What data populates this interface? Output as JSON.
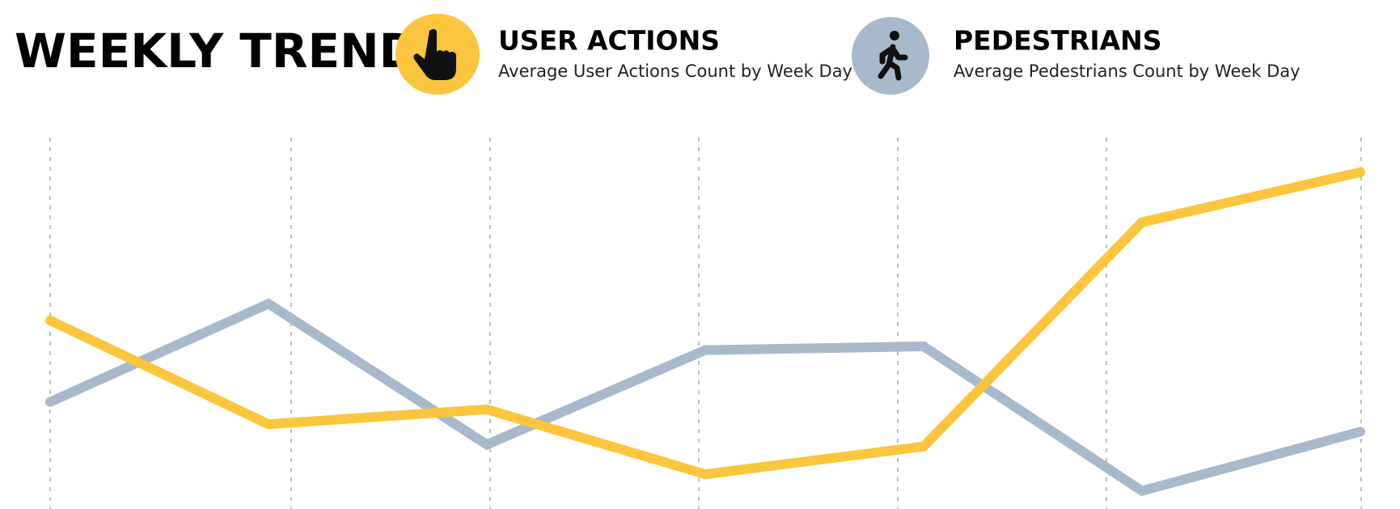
{
  "chart_data": {
    "type": "line",
    "title": "WEEKLY TREND",
    "categories": [
      null,
      null,
      null,
      null,
      null,
      null,
      null
    ],
    "ylim": [
      0,
      100
    ],
    "series": [
      {
        "name": "USER ACTIONS",
        "description": "Average User Actions Count by Week Day",
        "color": "#fbc53d",
        "values": [
          50,
          22,
          26,
          8.5,
          16,
          76.5,
          90
        ]
      },
      {
        "name": "PEDESTRIANS",
        "description": "Average Pedestrians Count by Week Day",
        "color": "#a9b9cc",
        "values": [
          28,
          54.5,
          16.5,
          42,
          43,
          4,
          20
        ]
      }
    ]
  }
}
